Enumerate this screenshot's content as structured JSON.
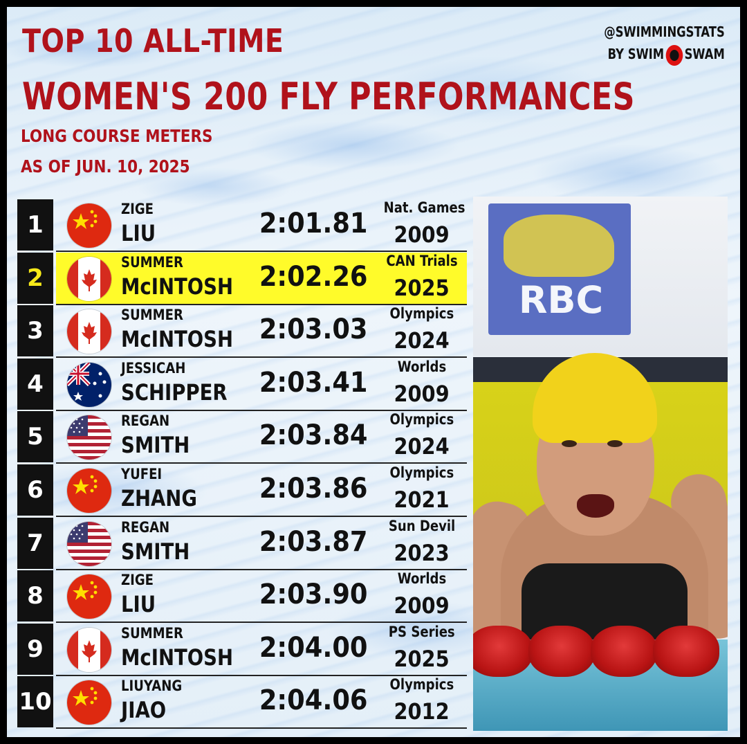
{
  "header": {
    "title_line1": "TOP 10 ALL-TIME",
    "title_line2": "WOMEN'S 200 FLY PERFORMANCES",
    "subtitle_line1": "LONG COURSE METERS",
    "subtitle_line2": "AS OF JUN. 10, 2025"
  },
  "brand": {
    "handle": "@SWIMMINGSTATS",
    "by_label": "BY SWIM",
    "swam_label": "SWAM"
  },
  "colors": {
    "title_red": "#b0121b",
    "highlight_yellow": "#fffb2a",
    "rank_bg": "#111111",
    "rank_highlight_text": "#f7ea1a"
  },
  "photo": {
    "sponsor_text": "RBC"
  },
  "rankings": [
    {
      "rank": "1",
      "first": "ZIGE",
      "last": "LIU",
      "time": "2:01.81",
      "meet": "Nat. Games",
      "year": "2009",
      "flag": "china",
      "highlight": false
    },
    {
      "rank": "2",
      "first": "SUMMER",
      "last": "McINTOSH",
      "time": "2:02.26",
      "meet": "CAN Trials",
      "year": "2025",
      "flag": "canada",
      "highlight": true
    },
    {
      "rank": "3",
      "first": "SUMMER",
      "last": "McINTOSH",
      "time": "2:03.03",
      "meet": "Olympics",
      "year": "2024",
      "flag": "canada",
      "highlight": false
    },
    {
      "rank": "4",
      "first": "JESSICAH",
      "last": "SCHIPPER",
      "time": "2:03.41",
      "meet": "Worlds",
      "year": "2009",
      "flag": "australia",
      "highlight": false
    },
    {
      "rank": "5",
      "first": "REGAN",
      "last": "SMITH",
      "time": "2:03.84",
      "meet": "Olympics",
      "year": "2024",
      "flag": "usa",
      "highlight": false
    },
    {
      "rank": "6",
      "first": "YUFEI",
      "last": "ZHANG",
      "time": "2:03.86",
      "meet": "Olympics",
      "year": "2021",
      "flag": "china",
      "highlight": false
    },
    {
      "rank": "7",
      "first": "REGAN",
      "last": "SMITH",
      "time": "2:03.87",
      "meet": "Sun Devil",
      "year": "2023",
      "flag": "usa",
      "highlight": false
    },
    {
      "rank": "8",
      "first": "ZIGE",
      "last": "LIU",
      "time": "2:03.90",
      "meet": "Worlds",
      "year": "2009",
      "flag": "china",
      "highlight": false
    },
    {
      "rank": "9",
      "first": "SUMMER",
      "last": "McINTOSH",
      "time": "2:04.00",
      "meet": "PS Series",
      "year": "2025",
      "flag": "canada",
      "highlight": false
    },
    {
      "rank": "10",
      "first": "LIUYANG",
      "last": "JIAO",
      "time": "2:04.06",
      "meet": "Olympics",
      "year": "2012",
      "flag": "china",
      "highlight": false
    }
  ]
}
